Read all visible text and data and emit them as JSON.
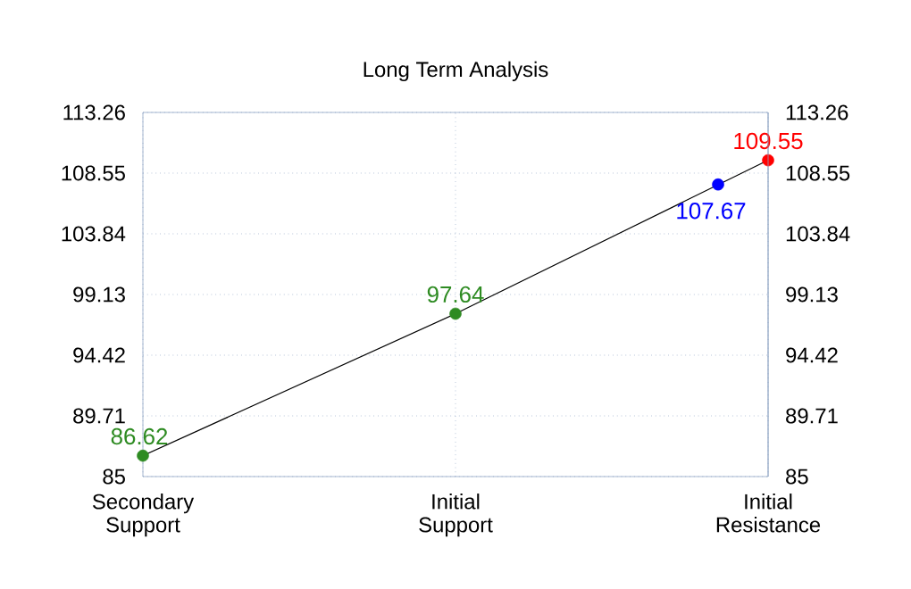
{
  "chart_data": {
    "type": "line",
    "title": "Long Term Analysis",
    "categories": [
      "Secondary Support",
      "Initial Support",
      "Initial Resistance"
    ],
    "ylim": [
      85,
      113.26
    ],
    "yticks": [
      85,
      89.71,
      94.42,
      99.13,
      103.84,
      108.55,
      113.26
    ],
    "y2lim": [
      85,
      113.26
    ],
    "y2ticks": [
      85,
      89.71,
      94.42,
      99.13,
      103.84,
      108.55,
      113.26
    ],
    "grid": true,
    "marker": "circle",
    "data_labels": true,
    "series": [
      {
        "color": "#000000",
        "values": [
          86.62,
          97.64,
          109.55
        ],
        "colors": [
          "#2e8b22",
          "#2e8b22",
          "#ff0000"
        ]
      },
      {
        "type": "scatter",
        "x": [
          "Initial Resistance"
        ],
        "values": [
          107.67
        ],
        "color": "#0000ff"
      }
    ]
  }
}
